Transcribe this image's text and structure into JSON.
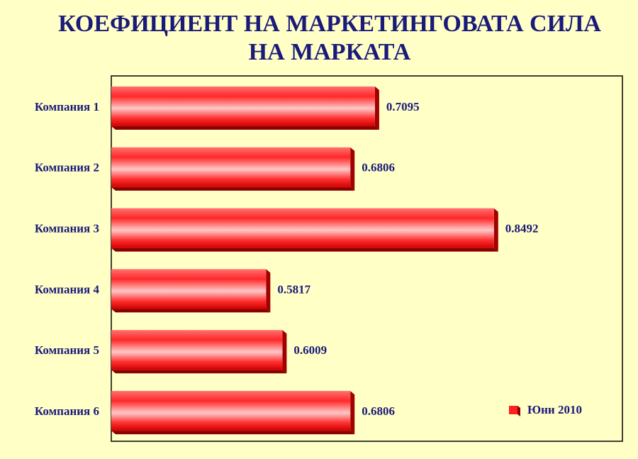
{
  "chart_data": {
    "type": "barh",
    "title": "КОЕФИЦИЕНТ НА МАРКЕТИНГОВАТА СИЛА",
    "subtitle": "НА МАРКАТА",
    "categories": [
      "Компания 1",
      "Компания 2",
      "Компания 3",
      "Компания 4",
      "Компания 5",
      "Компания 6"
    ],
    "series": [
      {
        "name": "Юни 2010",
        "color": "#ff2020",
        "values": [
          0.7095,
          0.6806,
          0.8492,
          0.5817,
          0.6009,
          0.6806
        ]
      }
    ],
    "xlim": [
      0.4,
      1.0
    ],
    "legend": "lower right"
  }
}
